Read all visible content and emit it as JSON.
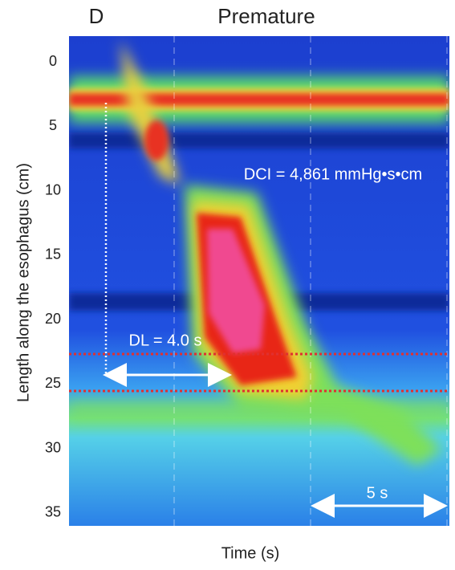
{
  "chart_data": {
    "type": "heatmap",
    "panel_label": "D",
    "title": "Premature",
    "y_label": "Length along the esophagus (cm)",
    "x_label": "Time (s)",
    "ylim": [
      -2,
      36
    ],
    "y_inverted": true,
    "yticks": [
      0,
      5,
      10,
      15,
      20,
      25,
      30,
      35
    ],
    "annotations": [
      "DCI = 4,861 mmHg•s•cm",
      "DL = 4.0 s",
      "5 s"
    ]
  }
}
